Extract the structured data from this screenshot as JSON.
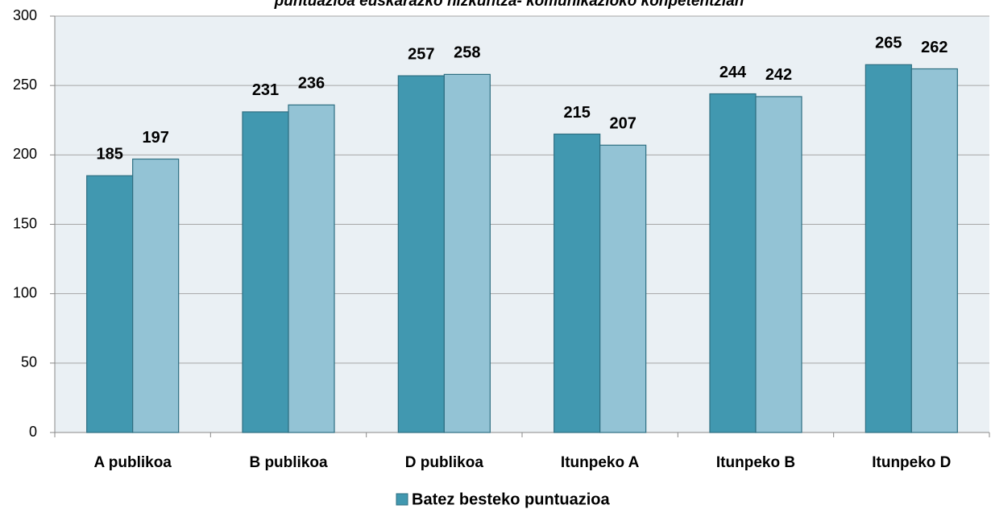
{
  "chart_data": {
    "type": "bar",
    "title": "puntuazioa euskarazko hizkuntza- komunikazioko konpetentzian",
    "categories": [
      "A publikoa",
      "B publikoa",
      "D publikoa",
      "Itunpeko A",
      "Itunpeko B",
      "Itunpeko D"
    ],
    "series": [
      {
        "name": "Batez besteko puntuazioa",
        "color": "#4198b0",
        "values": [
          185,
          231,
          257,
          215,
          244,
          265
        ]
      },
      {
        "color": "#93c3d5",
        "values": [
          197,
          236,
          258,
          207,
          242,
          262
        ]
      }
    ],
    "ylim": [
      0,
      300
    ],
    "yticks": [
      0,
      50,
      100,
      150,
      200,
      250,
      300
    ],
    "grid": true
  }
}
